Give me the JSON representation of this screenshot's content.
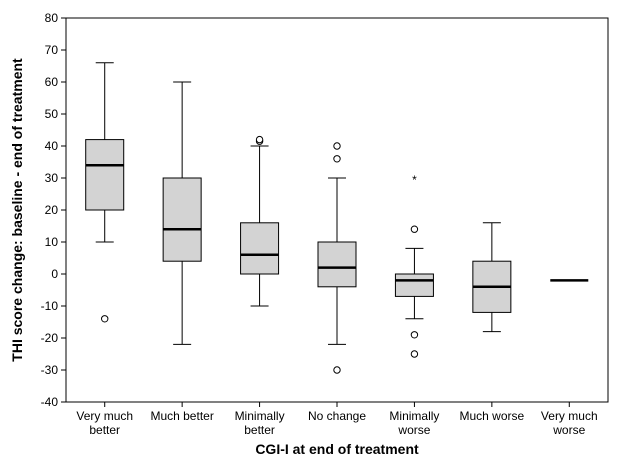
{
  "chart_data": {
    "type": "box",
    "title": "",
    "xlabel": "CGI-I at end of treatment",
    "ylabel": "THI score change: baseline - end of treatment",
    "ylim": [
      -40,
      80
    ],
    "yticks": [
      -40,
      -30,
      -20,
      -10,
      0,
      10,
      20,
      30,
      40,
      50,
      60,
      70,
      80
    ],
    "grid": false,
    "categories": [
      [
        "Very much",
        "better"
      ],
      [
        "Much better"
      ],
      [
        "Minimally",
        "better"
      ],
      [
        "No change"
      ],
      [
        "Minimally",
        "worse"
      ],
      [
        "Much worse"
      ],
      [
        "Very much",
        "worse"
      ]
    ],
    "boxes": [
      {
        "category": "Very much better",
        "whisker_low": 10,
        "q1": 20,
        "median": 34,
        "q3": 42,
        "whisker_high": 66,
        "outliers": [
          -14
        ],
        "extremes": []
      },
      {
        "category": "Much better",
        "whisker_low": -22,
        "q1": 4,
        "median": 14,
        "q3": 30,
        "whisker_high": 60,
        "outliers": [],
        "extremes": []
      },
      {
        "category": "Minimally better",
        "whisker_low": -10,
        "q1": 0,
        "median": 6,
        "q3": 16,
        "whisker_high": 40,
        "outliers": [
          41.5,
          42
        ],
        "extremes": []
      },
      {
        "category": "No change",
        "whisker_low": -22,
        "q1": -4,
        "median": 2,
        "q3": 10,
        "whisker_high": 30,
        "outliers": [
          40,
          36,
          -30
        ],
        "extremes": []
      },
      {
        "category": "Minimally worse",
        "whisker_low": -14,
        "q1": -7,
        "median": -2,
        "q3": 0,
        "whisker_high": 8,
        "outliers": [
          14,
          -19,
          -25
        ],
        "extremes": [
          30
        ]
      },
      {
        "category": "Much worse",
        "whisker_low": -18,
        "q1": -12,
        "median": -4,
        "q3": 4,
        "whisker_high": 16,
        "outliers": [],
        "extremes": []
      },
      {
        "category": "Very much worse",
        "whisker_low": -2,
        "q1": -2,
        "median": -2,
        "q3": -2,
        "whisker_high": -2,
        "outliers": [],
        "extremes": []
      }
    ],
    "colors": {
      "box_fill": "#d3d3d3",
      "stroke": "#000000"
    }
  }
}
